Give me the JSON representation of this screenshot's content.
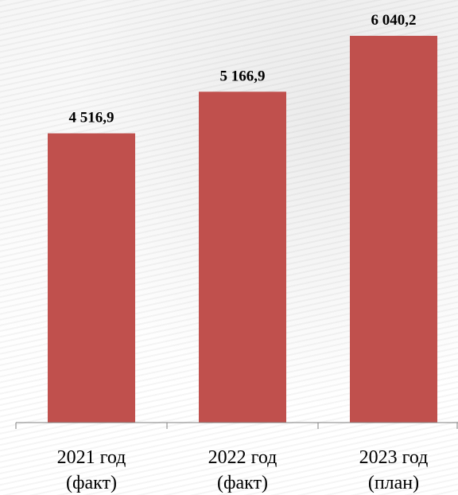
{
  "chart_data": {
    "type": "bar",
    "categories": [
      "2021 год (факт)",
      "2022 год (факт)",
      "2023 год (план)"
    ],
    "category_lines": [
      [
        "2021 год",
        "(факт)"
      ],
      [
        "2022 год",
        "(факт)"
      ],
      [
        "2023 год",
        "(план)"
      ]
    ],
    "values": [
      4516.9,
      5166.9,
      6040.2
    ],
    "data_labels": [
      "4 516,9",
      "5 166,9",
      "6 040,2"
    ],
    "title": "",
    "xlabel": "",
    "ylabel": "",
    "ylim": [
      0,
      6500
    ],
    "grid": false,
    "legend": "none",
    "colors": {
      "bar": "#c0504d",
      "axis": "#808080"
    }
  }
}
